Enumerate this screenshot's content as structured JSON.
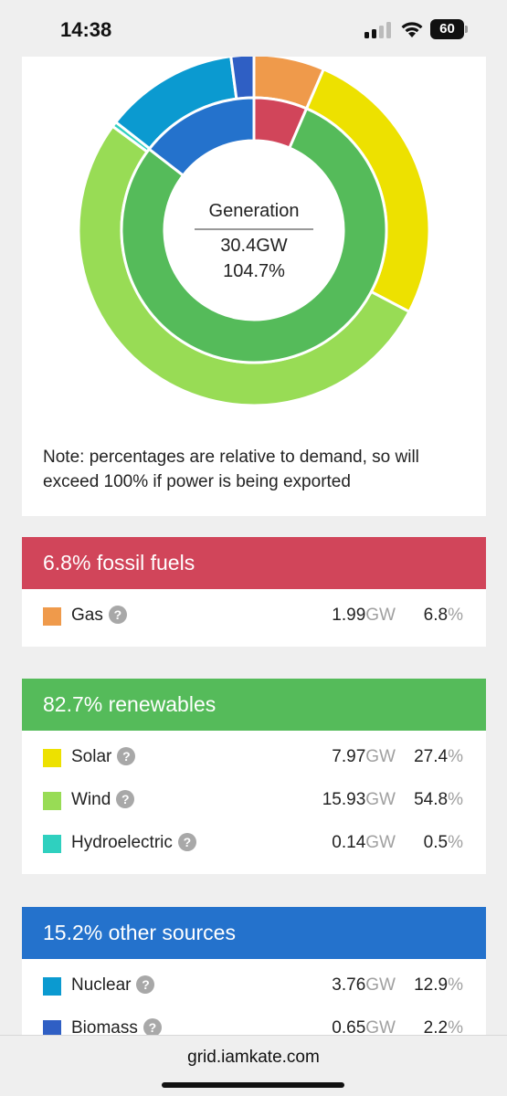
{
  "status": {
    "time": "14:38",
    "battery": "60"
  },
  "chart": {
    "center_title": "Generation",
    "center_gw": "30.4GW",
    "center_pct": "104.7%",
    "note": "Note: percentages are relative to demand, so will exceed 100% if power is being exported"
  },
  "chart_data": {
    "type": "pie",
    "inner_ring": [
      {
        "name": "fossil fuels",
        "value": 6.8,
        "color": "#d1455a"
      },
      {
        "name": "renewables",
        "value": 82.7,
        "color": "#55bb5a"
      },
      {
        "name": "other sources",
        "value": 15.2,
        "color": "#2472cc"
      }
    ],
    "outer_ring": [
      {
        "name": "Gas",
        "value": 6.8,
        "color": "#ef9a4b"
      },
      {
        "name": "Solar",
        "value": 27.4,
        "color": "#ede100"
      },
      {
        "name": "Wind",
        "value": 54.8,
        "color": "#98dc55"
      },
      {
        "name": "Hydroelectric",
        "value": 0.5,
        "color": "#2fd0bf"
      },
      {
        "name": "Nuclear",
        "value": 12.9,
        "color": "#0b9ad0"
      },
      {
        "name": "Biomass",
        "value": 2.2,
        "color": "#2f5fc4"
      }
    ]
  },
  "groups": [
    {
      "title": "6.8% fossil fuels",
      "color": "#d1455a",
      "rows": [
        {
          "name": "Gas",
          "help": "?",
          "gw": "1.99",
          "gw_unit": "GW",
          "pct": "6.8",
          "pct_unit": "%",
          "color": "#ef9a4b"
        }
      ]
    },
    {
      "title": "82.7% renewables",
      "color": "#55bb5a",
      "rows": [
        {
          "name": "Solar",
          "help": "?",
          "gw": "7.97",
          "gw_unit": "GW",
          "pct": "27.4",
          "pct_unit": "%",
          "color": "#ede100"
        },
        {
          "name": "Wind",
          "help": "?",
          "gw": "15.93",
          "gw_unit": "GW",
          "pct": "54.8",
          "pct_unit": "%",
          "color": "#98dc55"
        },
        {
          "name": "Hydroelectric",
          "help": "?",
          "gw": "0.14",
          "gw_unit": "GW",
          "pct": "0.5",
          "pct_unit": "%",
          "color": "#2fd0bf"
        }
      ]
    },
    {
      "title": "15.2% other sources",
      "color": "#2472cc",
      "rows": [
        {
          "name": "Nuclear",
          "help": "?",
          "gw": "3.76",
          "gw_unit": "GW",
          "pct": "12.9",
          "pct_unit": "%",
          "color": "#0b9ad0"
        },
        {
          "name": "Biomass",
          "help": "?",
          "gw": "0.65",
          "gw_unit": "GW",
          "pct": "2.2",
          "pct_unit": "%",
          "color": "#2f5fc4"
        }
      ]
    }
  ],
  "browser": {
    "url": "grid.iamkate.com"
  }
}
